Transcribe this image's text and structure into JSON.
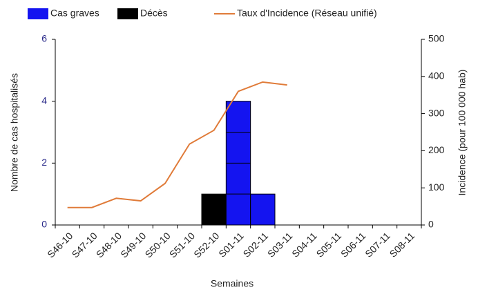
{
  "chart_data": {
    "type": "bar",
    "x_label": "Semaines",
    "y_label": "Nombre de cas hospitalisés",
    "y2_label": "Incidence (pour 100 000 hab)",
    "categories": [
      "S46-10",
      "S47-10",
      "S48-10",
      "S49-10",
      "S50-10",
      "S51-10",
      "S52-10",
      "S01-11",
      "S02-11",
      "S03-11",
      "S04-11",
      "S05-11",
      "S06-11",
      "S07-11",
      "S08-11"
    ],
    "series": [
      {
        "name": "Cas graves",
        "type": "bar",
        "color": "#1414f0",
        "values": [
          0,
          0,
          0,
          0,
          0,
          0,
          0,
          4,
          1,
          0,
          0,
          0,
          0,
          0,
          0
        ]
      },
      {
        "name": "Décès",
        "type": "bar",
        "color": "#000000",
        "values": [
          0,
          0,
          0,
          0,
          0,
          0,
          1,
          0,
          0,
          0,
          0,
          0,
          0,
          0,
          0
        ]
      },
      {
        "name": "Taux d'Incidence (Réseau unifié)",
        "type": "line",
        "axis": "y2",
        "color": "#e07b39",
        "values": [
          47,
          47,
          72,
          65,
          112,
          218,
          255,
          360,
          385,
          377,
          null,
          null,
          null,
          null,
          null
        ]
      }
    ],
    "stack_order": [
      "Décès",
      "Cas graves"
    ],
    "ylim": [
      0,
      6
    ],
    "yticks": [
      0,
      2,
      4,
      6
    ],
    "y2lim": [
      0,
      500
    ],
    "y2ticks": [
      0,
      100,
      200,
      300,
      400,
      500
    ],
    "legend": "top"
  }
}
